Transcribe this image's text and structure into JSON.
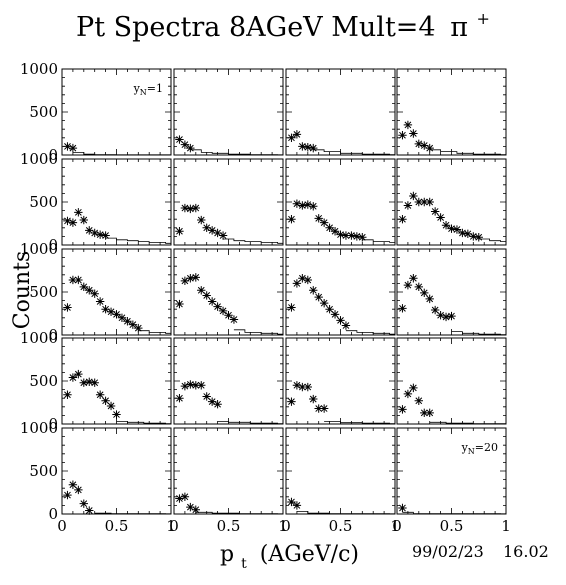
{
  "title": "Pt Spectra 8AGeV Mult=4",
  "title_particle": "π",
  "title_charge": "+",
  "xlabel_main": "p",
  "xlabel_sub": "t",
  "xlabel_unit": "(AGeV/c)",
  "ylabel": "Counts",
  "date_stamp": "99/02/23",
  "time_stamp": "16.02",
  "colors": {
    "background": "#ffffff",
    "ink": "#000000"
  },
  "chart_data": {
    "type": "scatter",
    "layout": "grid 5 rows x 4 columns",
    "marker": "asterisk",
    "xlim": [
      0,
      1
    ],
    "ylim": [
      0,
      1000
    ],
    "x_ticks": [
      "0",
      "0.5",
      "1"
    ],
    "y_ticks": [
      "0",
      "500",
      "1000"
    ],
    "panels": [
      {
        "label_main": "y",
        "label_sub": "N",
        "label_value": "=1",
        "points": [
          [
            0.05,
            100
          ],
          [
            0.1,
            80
          ]
        ],
        "line": [
          [
            0.1,
            30
          ],
          [
            0.2,
            10
          ],
          [
            0.3,
            5
          ],
          [
            0.5,
            2
          ]
        ]
      },
      {
        "points": [
          [
            0.05,
            180
          ],
          [
            0.1,
            120
          ],
          [
            0.15,
            80
          ]
        ],
        "line": [
          [
            0.15,
            60
          ],
          [
            0.25,
            30
          ],
          [
            0.35,
            20
          ],
          [
            0.5,
            10
          ],
          [
            0.7,
            5
          ],
          [
            0.95,
            2
          ]
        ]
      },
      {
        "points": [
          [
            0.05,
            200
          ],
          [
            0.1,
            240
          ],
          [
            0.15,
            100
          ],
          [
            0.2,
            90
          ],
          [
            0.25,
            80
          ]
        ],
        "line": [
          [
            0.25,
            60
          ],
          [
            0.35,
            40
          ],
          [
            0.5,
            20
          ],
          [
            0.7,
            10
          ],
          [
            0.95,
            5
          ]
        ]
      },
      {
        "points": [
          [
            0.05,
            230
          ],
          [
            0.1,
            350
          ],
          [
            0.15,
            250
          ],
          [
            0.2,
            130
          ],
          [
            0.25,
            110
          ],
          [
            0.3,
            80
          ]
        ],
        "line": [
          [
            0.3,
            60
          ],
          [
            0.4,
            40
          ],
          [
            0.55,
            20
          ],
          [
            0.7,
            10
          ],
          [
            0.95,
            5
          ]
        ]
      },
      {
        "points": [
          [
            0.05,
            280
          ],
          [
            0.1,
            260
          ],
          [
            0.15,
            380
          ],
          [
            0.2,
            290
          ],
          [
            0.25,
            170
          ],
          [
            0.3,
            140
          ],
          [
            0.35,
            120
          ],
          [
            0.4,
            110
          ]
        ],
        "line": [
          [
            0.4,
            80
          ],
          [
            0.5,
            60
          ],
          [
            0.6,
            50
          ],
          [
            0.7,
            40
          ],
          [
            0.8,
            30
          ],
          [
            0.95,
            20
          ]
        ]
      },
      {
        "points": [
          [
            0.05,
            160
          ],
          [
            0.1,
            430
          ],
          [
            0.15,
            420
          ],
          [
            0.2,
            430
          ],
          [
            0.25,
            290
          ],
          [
            0.3,
            200
          ],
          [
            0.35,
            170
          ],
          [
            0.4,
            140
          ],
          [
            0.45,
            110
          ]
        ],
        "line": [
          [
            0.45,
            70
          ],
          [
            0.55,
            50
          ],
          [
            0.65,
            40
          ],
          [
            0.8,
            30
          ],
          [
            0.95,
            20
          ]
        ]
      },
      {
        "points": [
          [
            0.05,
            300
          ],
          [
            0.1,
            480
          ],
          [
            0.15,
            460
          ],
          [
            0.2,
            470
          ],
          [
            0.25,
            450
          ],
          [
            0.3,
            310
          ],
          [
            0.35,
            260
          ],
          [
            0.4,
            200
          ],
          [
            0.45,
            160
          ],
          [
            0.5,
            120
          ],
          [
            0.55,
            110
          ],
          [
            0.6,
            110
          ],
          [
            0.65,
            100
          ],
          [
            0.7,
            90
          ]
        ],
        "line": [
          [
            0.7,
            60
          ],
          [
            0.8,
            40
          ],
          [
            0.95,
            30
          ]
        ]
      },
      {
        "points": [
          [
            0.05,
            300
          ],
          [
            0.1,
            460
          ],
          [
            0.15,
            570
          ],
          [
            0.2,
            500
          ],
          [
            0.25,
            500
          ],
          [
            0.3,
            500
          ],
          [
            0.35,
            390
          ],
          [
            0.4,
            320
          ],
          [
            0.45,
            230
          ],
          [
            0.5,
            190
          ],
          [
            0.55,
            180
          ],
          [
            0.6,
            140
          ],
          [
            0.65,
            130
          ],
          [
            0.7,
            100
          ],
          [
            0.75,
            90
          ]
        ],
        "line": [
          [
            0.75,
            70
          ],
          [
            0.85,
            50
          ],
          [
            0.95,
            40
          ]
        ]
      },
      {
        "points": [
          [
            0.05,
            320
          ],
          [
            0.1,
            640
          ],
          [
            0.15,
            640
          ],
          [
            0.2,
            560
          ],
          [
            0.25,
            520
          ],
          [
            0.3,
            480
          ],
          [
            0.35,
            390
          ],
          [
            0.4,
            300
          ],
          [
            0.45,
            270
          ],
          [
            0.5,
            240
          ],
          [
            0.55,
            200
          ],
          [
            0.6,
            160
          ],
          [
            0.65,
            120
          ],
          [
            0.7,
            80
          ]
        ],
        "line": [
          [
            0.7,
            50
          ],
          [
            0.8,
            30
          ],
          [
            0.95,
            20
          ]
        ]
      },
      {
        "points": [
          [
            0.05,
            360
          ],
          [
            0.1,
            630
          ],
          [
            0.15,
            660
          ],
          [
            0.2,
            670
          ],
          [
            0.25,
            520
          ],
          [
            0.3,
            460
          ],
          [
            0.35,
            390
          ],
          [
            0.4,
            330
          ],
          [
            0.45,
            280
          ],
          [
            0.5,
            230
          ],
          [
            0.55,
            180
          ]
        ],
        "line": [
          [
            0.55,
            60
          ],
          [
            0.65,
            30
          ],
          [
            0.8,
            20
          ],
          [
            0.95,
            10
          ]
        ]
      },
      {
        "points": [
          [
            0.05,
            320
          ],
          [
            0.1,
            600
          ],
          [
            0.15,
            660
          ],
          [
            0.2,
            640
          ],
          [
            0.25,
            520
          ],
          [
            0.3,
            440
          ],
          [
            0.35,
            370
          ],
          [
            0.4,
            300
          ],
          [
            0.45,
            240
          ],
          [
            0.5,
            170
          ],
          [
            0.55,
            110
          ]
        ],
        "line": [
          [
            0.55,
            50
          ],
          [
            0.65,
            30
          ],
          [
            0.8,
            20
          ],
          [
            0.95,
            10
          ]
        ]
      },
      {
        "points": [
          [
            0.05,
            310
          ],
          [
            0.1,
            580
          ],
          [
            0.15,
            660
          ],
          [
            0.2,
            560
          ],
          [
            0.25,
            490
          ],
          [
            0.3,
            420
          ],
          [
            0.35,
            290
          ],
          [
            0.4,
            230
          ],
          [
            0.45,
            210
          ],
          [
            0.5,
            220
          ]
        ],
        "line": [
          [
            0.5,
            40
          ],
          [
            0.6,
            20
          ],
          [
            0.75,
            10
          ],
          [
            0.95,
            5
          ]
        ]
      },
      {
        "points": [
          [
            0.05,
            340
          ],
          [
            0.1,
            540
          ],
          [
            0.15,
            580
          ],
          [
            0.2,
            480
          ],
          [
            0.25,
            490
          ],
          [
            0.3,
            480
          ],
          [
            0.35,
            340
          ],
          [
            0.4,
            270
          ],
          [
            0.45,
            210
          ],
          [
            0.5,
            110
          ]
        ],
        "line": [
          [
            0.5,
            30
          ],
          [
            0.6,
            20
          ],
          [
            0.75,
            10
          ],
          [
            0.95,
            5
          ]
        ]
      },
      {
        "points": [
          [
            0.05,
            300
          ],
          [
            0.1,
            440
          ],
          [
            0.15,
            460
          ],
          [
            0.2,
            450
          ],
          [
            0.25,
            450
          ],
          [
            0.3,
            320
          ],
          [
            0.35,
            260
          ],
          [
            0.4,
            230
          ]
        ],
        "line": [
          [
            0.4,
            30
          ],
          [
            0.5,
            20
          ],
          [
            0.7,
            10
          ],
          [
            0.95,
            5
          ]
        ]
      },
      {
        "points": [
          [
            0.05,
            260
          ],
          [
            0.1,
            450
          ],
          [
            0.15,
            430
          ],
          [
            0.2,
            430
          ],
          [
            0.25,
            290
          ],
          [
            0.3,
            180
          ],
          [
            0.35,
            180
          ]
        ],
        "line": [
          [
            0.35,
            30
          ],
          [
            0.5,
            15
          ],
          [
            0.7,
            10
          ],
          [
            0.95,
            5
          ]
        ]
      },
      {
        "points": [
          [
            0.05,
            170
          ],
          [
            0.1,
            350
          ],
          [
            0.15,
            420
          ],
          [
            0.2,
            270
          ],
          [
            0.25,
            130
          ],
          [
            0.3,
            130
          ]
        ],
        "line": [
          [
            0.3,
            20
          ],
          [
            0.45,
            10
          ],
          [
            0.7,
            5
          ],
          [
            0.95,
            3
          ]
        ]
      },
      {
        "points": [
          [
            0.05,
            220
          ],
          [
            0.1,
            340
          ],
          [
            0.15,
            280
          ],
          [
            0.2,
            120
          ],
          [
            0.25,
            40
          ]
        ],
        "line": [
          [
            0.3,
            10
          ],
          [
            0.45,
            5
          ],
          [
            0.7,
            3
          ],
          [
            0.95,
            2
          ]
        ]
      },
      {
        "points": [
          [
            0.05,
            180
          ],
          [
            0.1,
            200
          ],
          [
            0.15,
            80
          ],
          [
            0.2,
            50
          ]
        ],
        "line": [
          [
            0.2,
            20
          ],
          [
            0.35,
            10
          ],
          [
            0.6,
            5
          ],
          [
            0.95,
            2
          ]
        ]
      },
      {
        "points": [
          [
            0.05,
            140
          ],
          [
            0.1,
            100
          ]
        ],
        "line": [
          [
            0.1,
            30
          ],
          [
            0.2,
            10
          ],
          [
            0.4,
            5
          ],
          [
            0.95,
            2
          ]
        ]
      },
      {
        "label_main": "y",
        "label_sub": "N",
        "label_value": "=20",
        "points": [
          [
            0.05,
            70
          ]
        ],
        "line": [
          [
            0.05,
            20
          ],
          [
            0.15,
            5
          ],
          [
            0.4,
            3
          ],
          [
            0.95,
            2
          ]
        ]
      }
    ]
  }
}
